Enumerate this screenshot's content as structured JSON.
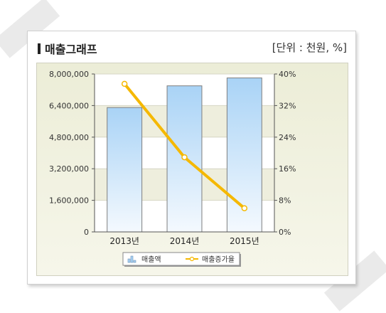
{
  "header": {
    "title": "매출그래프",
    "unit": "[단위 : 천원, %]"
  },
  "colors": {
    "bar_top": "#a9d3f6",
    "bar_bottom": "#f4f9fe",
    "bar_border": "#7f7f7f",
    "line": "#f5b800",
    "marker_fill": "#ffffff",
    "band": "#eeeedd"
  },
  "chart_data": {
    "type": "bar",
    "categories": [
      "2013년",
      "2014년",
      "2015년"
    ],
    "series": [
      {
        "name": "매출액",
        "type": "bar",
        "axis": "left",
        "values": [
          6300000,
          7400000,
          7800000
        ]
      },
      {
        "name": "매출증가율",
        "type": "line",
        "axis": "right",
        "values": [
          37.5,
          18.9,
          6.0
        ]
      }
    ],
    "y_left": {
      "min": 0,
      "max": 8000000,
      "ticks": [
        "8,000,000",
        "6,400,000",
        "4,800,000",
        "3,200,000",
        "1,600,000",
        "0"
      ]
    },
    "y_right": {
      "min": 0,
      "max": 40,
      "ticks": [
        "40%",
        "32%",
        "24%",
        "16%",
        "8%",
        "0%"
      ]
    },
    "legend": {
      "position": "bottom",
      "items": [
        "매출액",
        "매출증가율"
      ]
    },
    "grid": true
  }
}
